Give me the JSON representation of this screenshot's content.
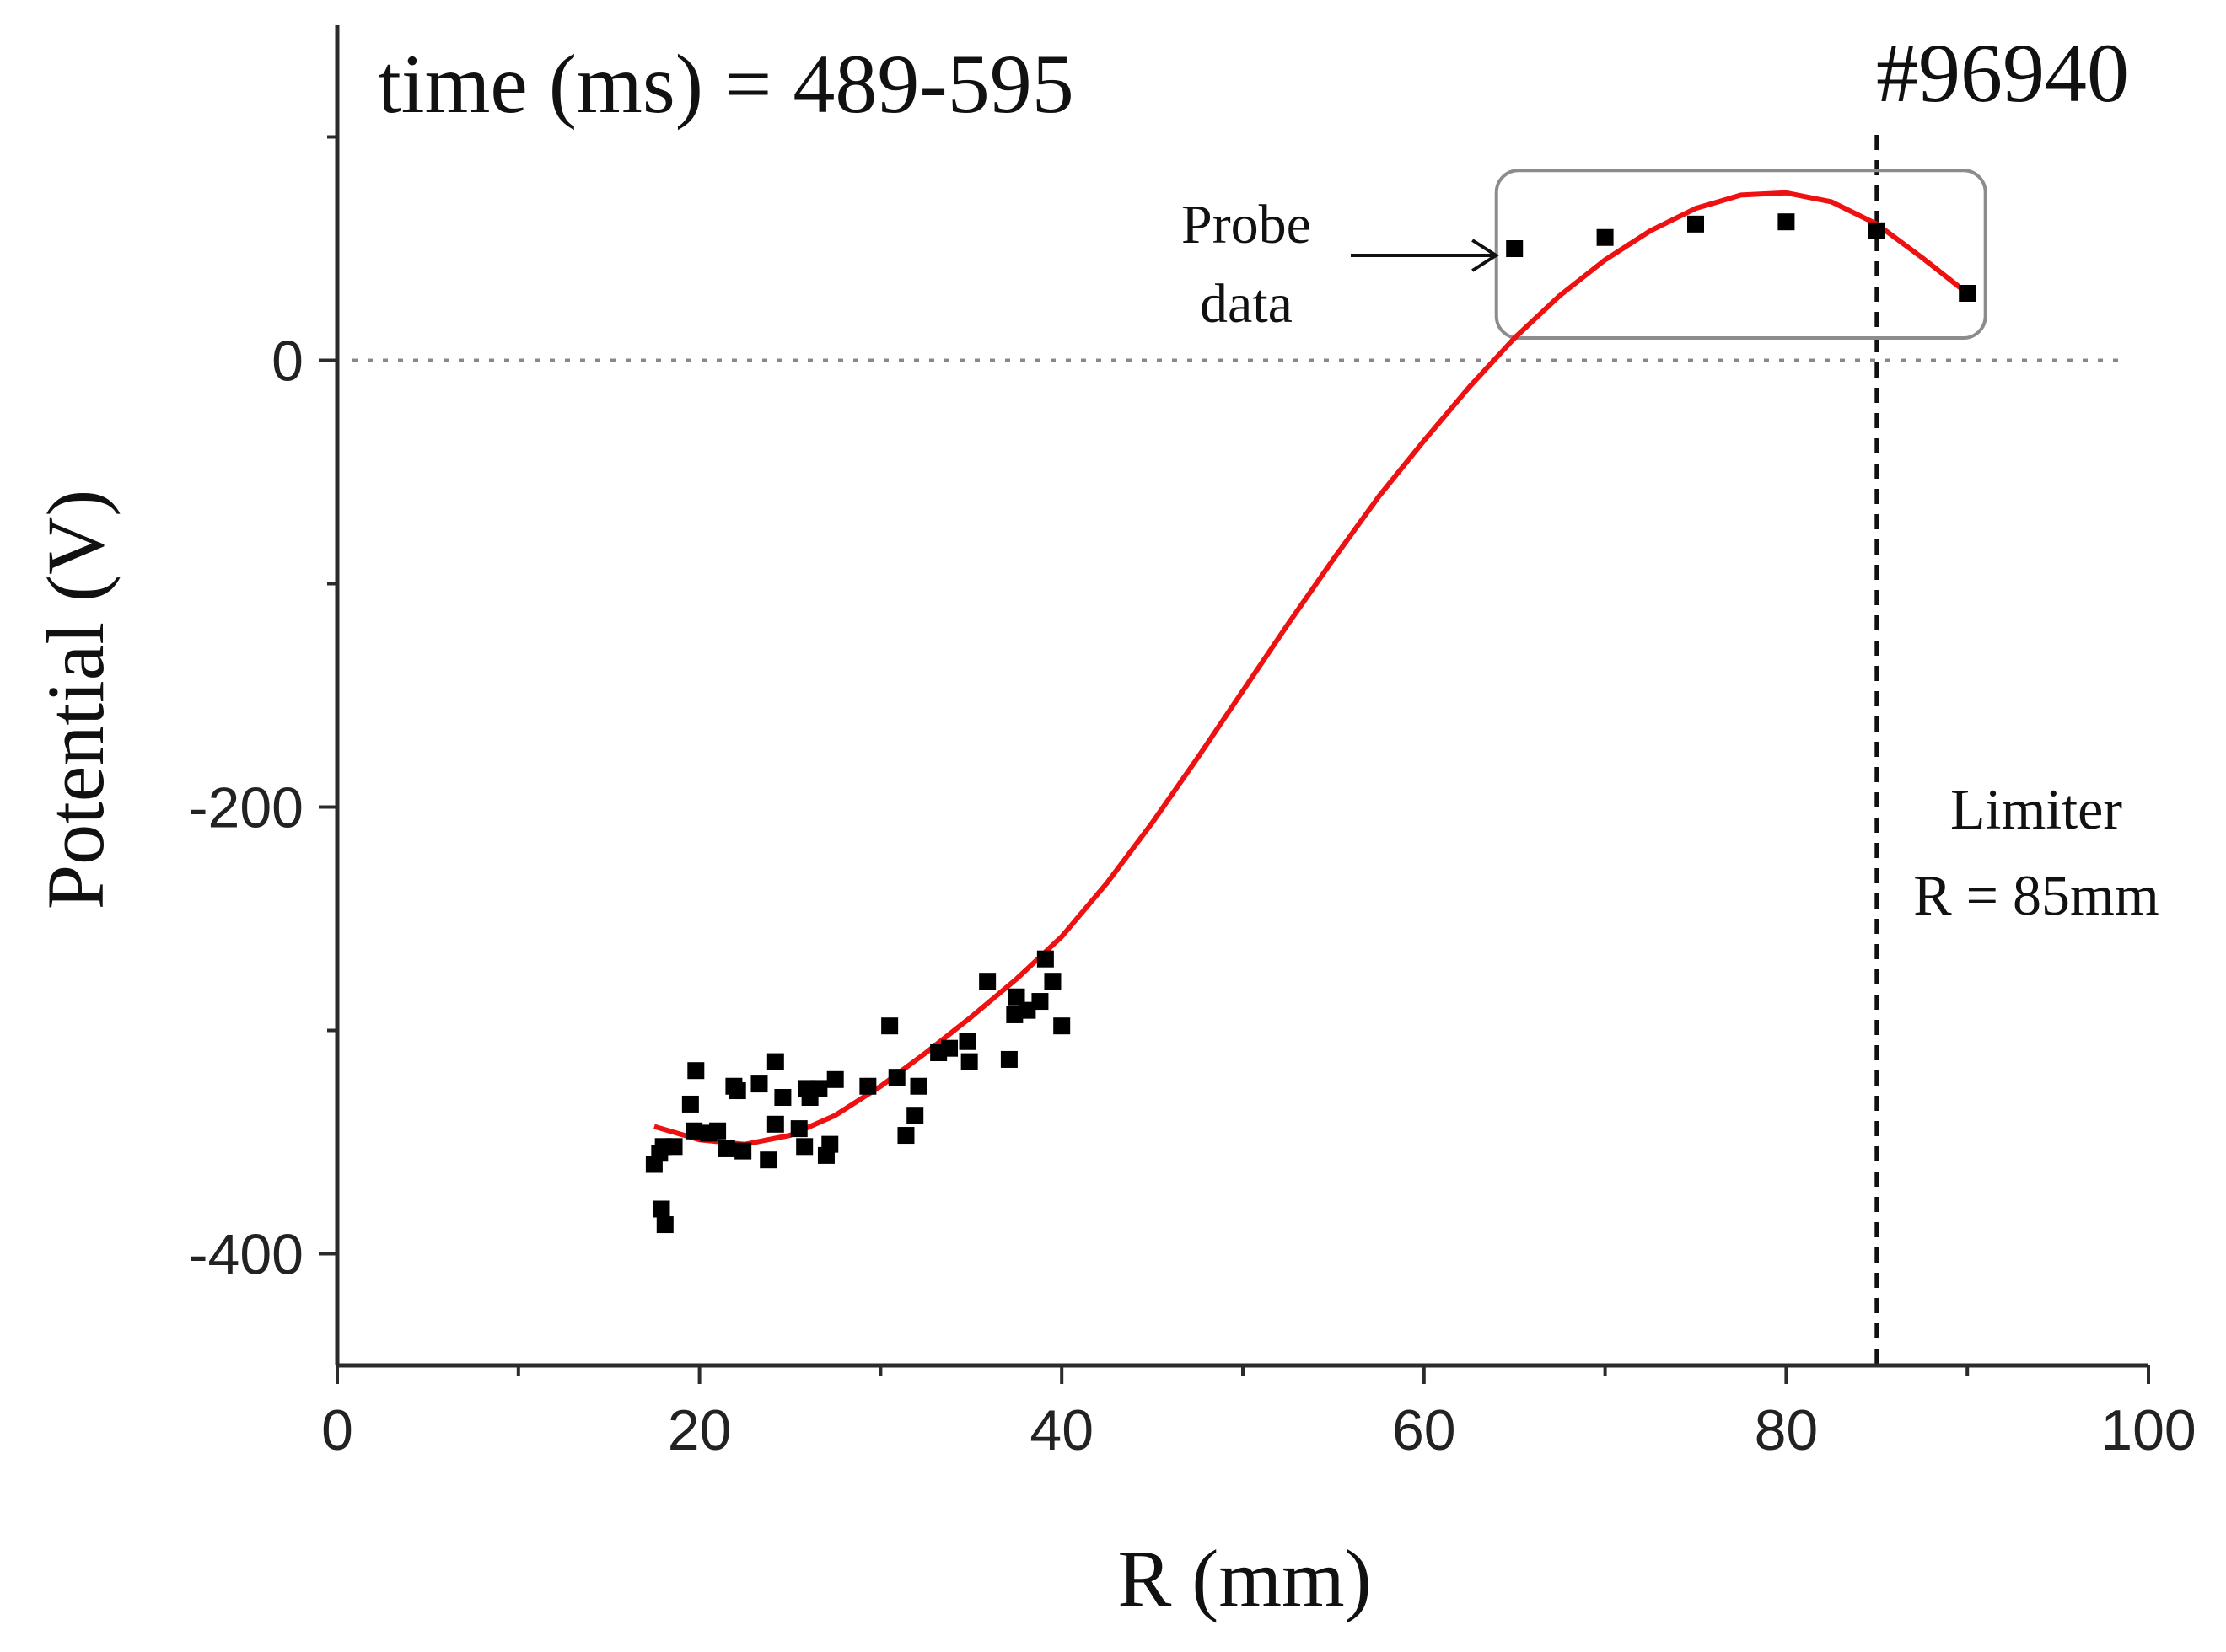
{
  "chart_data": {
    "type": "scatter",
    "title": "time (ms) = 489-595",
    "shot": "#96940",
    "xlabel": "R (mm)",
    "ylabel": "Potential (V)",
    "xlim": [
      0,
      100
    ],
    "ylim": [
      -450,
      150
    ],
    "xticks": [
      0,
      20,
      40,
      60,
      80,
      100
    ],
    "yticks": [
      -400,
      -200,
      0
    ],
    "xminor_step": 10,
    "yminor_step": 100,
    "zero_line": 0,
    "limiter": {
      "x": 85,
      "label_line1": "Limiter",
      "label_line2": "R = 85mm"
    },
    "probe_annotation": {
      "line1": "Probe",
      "line2": "data",
      "region_x": [
        64,
        91
      ],
      "region_y": [
        10,
        85
      ]
    },
    "series": [
      {
        "name": "Data points",
        "points": [
          [
            17.5,
            -360
          ],
          [
            17.8,
            -355
          ],
          [
            18.0,
            -352
          ],
          [
            17.9,
            -380
          ],
          [
            18.1,
            -387
          ],
          [
            18.6,
            -352
          ],
          [
            19.5,
            -333
          ],
          [
            19.7,
            -345
          ],
          [
            19.8,
            -318
          ],
          [
            20.5,
            -346
          ],
          [
            21.0,
            -345
          ],
          [
            21.5,
            -353
          ],
          [
            21.9,
            -325
          ],
          [
            22.1,
            -327
          ],
          [
            22.4,
            -354
          ],
          [
            23.3,
            -324
          ],
          [
            23.8,
            -358
          ],
          [
            24.2,
            -314
          ],
          [
            24.2,
            -342
          ],
          [
            24.6,
            -330
          ],
          [
            25.5,
            -344
          ],
          [
            25.8,
            -352
          ],
          [
            25.9,
            -326
          ],
          [
            26.1,
            -330
          ],
          [
            26.6,
            -326
          ],
          [
            27.0,
            -356
          ],
          [
            27.2,
            -351
          ],
          [
            27.5,
            -322
          ],
          [
            29.3,
            -325
          ],
          [
            30.5,
            -298
          ],
          [
            30.9,
            -321
          ],
          [
            31.4,
            -347
          ],
          [
            31.9,
            -338
          ],
          [
            32.1,
            -325
          ],
          [
            33.2,
            -310
          ],
          [
            33.8,
            -308
          ],
          [
            34.8,
            -305
          ],
          [
            34.9,
            -314
          ],
          [
            35.9,
            -278
          ],
          [
            37.1,
            -313
          ],
          [
            37.4,
            -293
          ],
          [
            37.5,
            -285
          ],
          [
            38.1,
            -291
          ],
          [
            38.8,
            -287
          ],
          [
            39.1,
            -268
          ],
          [
            39.5,
            -278
          ],
          [
            40.0,
            -298
          ],
          [
            65,
            50
          ],
          [
            70,
            55
          ],
          [
            75,
            61
          ],
          [
            80,
            62
          ],
          [
            85,
            58
          ],
          [
            90,
            30
          ]
        ]
      },
      {
        "name": "Fit",
        "points": [
          [
            17.5,
            -343
          ],
          [
            20,
            -349
          ],
          [
            22.5,
            -351
          ],
          [
            25,
            -347
          ],
          [
            27.5,
            -338
          ],
          [
            30,
            -325
          ],
          [
            32.5,
            -310
          ],
          [
            35,
            -294
          ],
          [
            37.5,
            -277
          ],
          [
            40,
            -258
          ],
          [
            42.5,
            -234
          ],
          [
            45,
            -207
          ],
          [
            47.5,
            -178
          ],
          [
            50,
            -148
          ],
          [
            52.5,
            -118
          ],
          [
            55,
            -89
          ],
          [
            57.5,
            -61
          ],
          [
            60,
            -36
          ],
          [
            62.5,
            -12
          ],
          [
            65,
            10
          ],
          [
            67.5,
            29
          ],
          [
            70,
            45
          ],
          [
            72.5,
            58
          ],
          [
            75,
            68
          ],
          [
            77.5,
            74
          ],
          [
            80,
            75
          ],
          [
            82.5,
            71
          ],
          [
            85,
            61
          ],
          [
            87.5,
            46
          ],
          [
            90,
            30
          ]
        ]
      }
    ]
  }
}
